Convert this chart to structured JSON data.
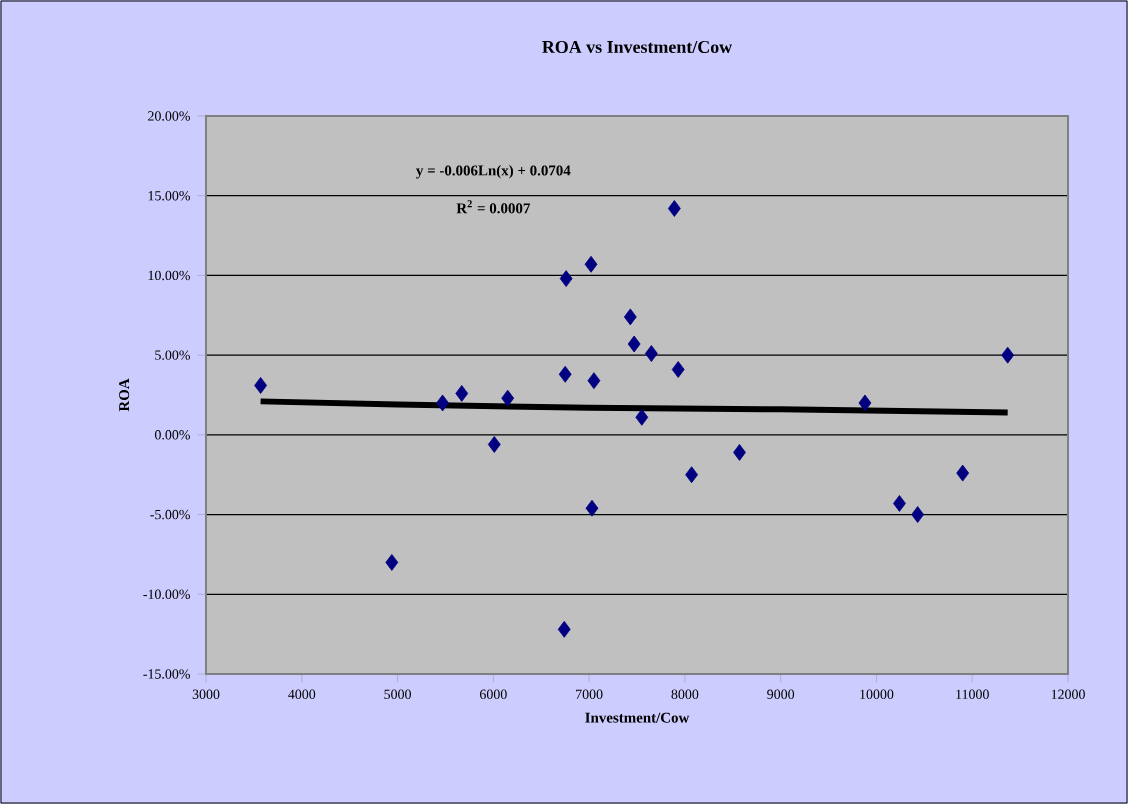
{
  "chart_data": {
    "type": "scatter",
    "title": "ROA vs Investment/Cow",
    "xlabel": "Investment/Cow",
    "ylabel": "ROA",
    "xlim": [
      3000,
      12000
    ],
    "xticks": [
      3000,
      4000,
      5000,
      6000,
      7000,
      8000,
      9000,
      10000,
      11000,
      12000
    ],
    "ylim": [
      -15,
      20
    ],
    "yticks": [
      {
        "value": -15,
        "label": "-15.00%"
      },
      {
        "value": -10,
        "label": "-10.00%"
      },
      {
        "value": -5,
        "label": "-5.00%"
      },
      {
        "value": 0,
        "label": "0.00%"
      },
      {
        "value": 5,
        "label": "5.00%"
      },
      {
        "value": 10,
        "label": "10.00%"
      },
      {
        "value": 15,
        "label": "15.00%"
      },
      {
        "value": 20,
        "label": "20.00%"
      }
    ],
    "grid": "y",
    "marker": "diamond",
    "series": [
      {
        "color": "#000080",
        "x": [
          3570,
          4940,
          5470,
          5670,
          6010,
          6150,
          6750,
          6760,
          6740,
          7020,
          7050,
          7030,
          7430,
          7470,
          7550,
          7650,
          7890,
          7930,
          8070,
          8570,
          9880,
          10240,
          10430,
          10900,
          11370
        ],
        "values": [
          3.1,
          -8.0,
          2.0,
          2.6,
          -0.6,
          2.3,
          3.8,
          9.8,
          -12.2,
          10.7,
          3.4,
          -4.6,
          7.4,
          5.7,
          1.1,
          5.1,
          14.2,
          4.1,
          -2.5,
          -1.1,
          2.0,
          -4.3,
          -5.0,
          -2.4,
          5.0
        ]
      },
      {
        "type": "line",
        "color": "#000000",
        "marker": "none",
        "x": [
          3570,
          5000,
          7000,
          9000,
          11370
        ],
        "values": [
          2.1,
          1.9,
          1.7,
          1.6,
          1.4
        ]
      }
    ],
    "annotations": [
      "y = -0.006Ln(x) + 0.0704",
      "R$^{2}$ = 0.0007"
    ]
  }
}
